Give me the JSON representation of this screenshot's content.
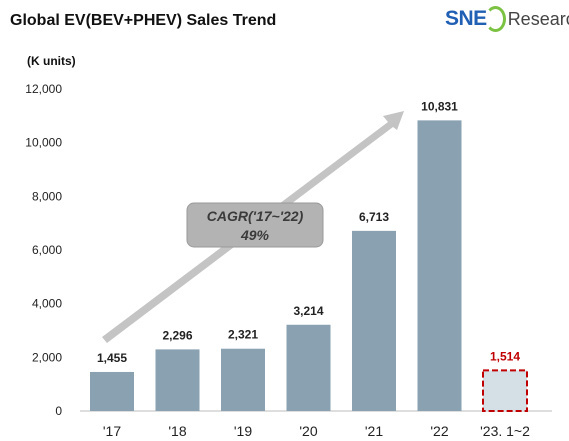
{
  "header": {
    "title": "Global EV(BEV+PHEV)  Sales Trend",
    "logo_sne": "SNE",
    "logo_research": "Research"
  },
  "chart_data": {
    "type": "bar",
    "title": "Global EV(BEV+PHEV)  Sales Trend",
    "unit_label": "(K units)",
    "categories": [
      "'17",
      "'18",
      "'19",
      "'20",
      "'21",
      "'22",
      "'23. 1~2"
    ],
    "values": [
      1455,
      2296,
      2321,
      3214,
      6713,
      10831,
      1514
    ],
    "value_labels": [
      "1,455",
      "2,296",
      "2,321",
      "3,214",
      "6,713",
      "10,831",
      "1,514"
    ],
    "ylim": [
      0,
      12000
    ],
    "yticks": [
      0,
      2000,
      4000,
      6000,
      8000,
      10000,
      12000
    ],
    "ytick_labels": [
      "0",
      "2,000",
      "4,000",
      "6,000",
      "8,000",
      "10,000",
      "12,000"
    ],
    "grid": false,
    "annotation": {
      "line1": "CAGR('17~'22)",
      "line2": "49%"
    },
    "colors": {
      "bar": "#8aa1b1",
      "highlight_fill": "#d5dfe6",
      "highlight_border": "#c00000",
      "highlight_label": "#c00000",
      "arrow": "#c4c4c4",
      "callout": "#b3b3b3"
    }
  }
}
